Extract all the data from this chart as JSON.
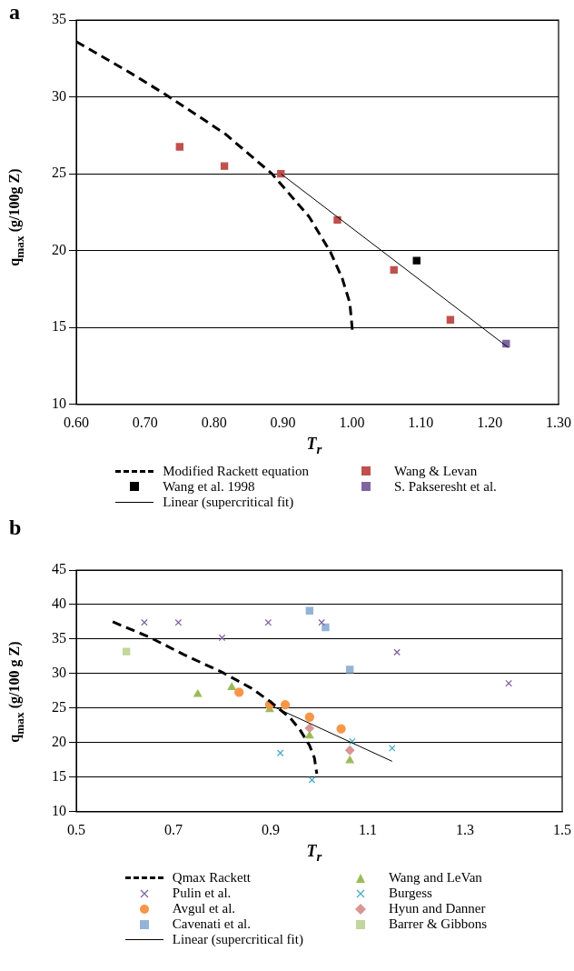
{
  "chart_data": [
    {
      "type": "scatter",
      "title": "a",
      "xlabel": "T$_{r}$",
      "ylabel": "q$_{max}$ (g/100g Z)",
      "xlim": [
        0.6,
        1.3
      ],
      "xticks": [
        {
          "value": 0.6,
          "label": "0.60"
        },
        {
          "value": 0.7,
          "label": "0.70"
        },
        {
          "value": 0.8,
          "label": "0.80"
        },
        {
          "value": 0.9,
          "label": "0.90"
        },
        {
          "value": 1.0,
          "label": "1.00"
        },
        {
          "value": 1.1,
          "label": "1.10"
        },
        {
          "value": 1.2,
          "label": "1.20"
        },
        {
          "value": 1.3,
          "label": "1.30"
        }
      ],
      "ylim": [
        10,
        35
      ],
      "yticks": [
        10,
        15,
        20,
        25,
        30,
        35
      ],
      "grid": "y",
      "legend": "bottom",
      "series": [
        {
          "name": "Modified Rackett equation",
          "type": "line",
          "line_style": "dashed",
          "marker": "none",
          "color": "#000000",
          "x": [
            0.6,
            0.677,
            0.728,
            0.816,
            0.884,
            0.938,
            0.969,
            0.986,
            0.997,
            1.001
          ],
          "values": [
            33.6,
            31.6,
            30.2,
            27.6,
            25.0,
            22.2,
            19.9,
            18.2,
            16.6,
            14.7
          ]
        },
        {
          "name": "Wang et al. 1998",
          "type": "scatter",
          "marker": "square",
          "color": "#000000",
          "x": [
            1.094
          ],
          "values": [
            19.35
          ]
        },
        {
          "name": "Linear (supercritical fit)",
          "type": "line",
          "line_style": "solid",
          "marker": "none",
          "color": "#000000",
          "x": [
            0.897,
            1.227
          ],
          "values": [
            25.0,
            13.7
          ]
        },
        {
          "name": "Wang & Levan",
          "type": "scatter",
          "marker": "square",
          "color": "#c0504d",
          "x": [
            0.75,
            0.815,
            0.897,
            0.979,
            1.061,
            1.143
          ],
          "values": [
            26.75,
            25.5,
            25.0,
            22.0,
            18.75,
            15.5
          ]
        },
        {
          "name": "S. Pakseresht et al.",
          "type": "scatter",
          "marker": "square",
          "color": "#8064a2",
          "x": [
            1.224
          ],
          "values": [
            13.95
          ]
        }
      ]
    },
    {
      "type": "scatter",
      "title": "b",
      "xlabel": "T$_{r}$",
      "ylabel": "q$_{max}$ (g/100 g Z)",
      "xlim": [
        0.5,
        1.5
      ],
      "xticks": [
        0.5,
        0.7,
        0.9,
        1.1,
        1.3,
        1.5
      ],
      "ylim": [
        10,
        45
      ],
      "yticks": [
        10,
        15,
        20,
        25,
        30,
        35,
        40,
        45
      ],
      "grid": "y",
      "legend": "bottom",
      "series": [
        {
          "name": "Qmax Rackett",
          "type": "line",
          "line_style": "dashed",
          "marker": "none",
          "color": "#000000",
          "x": [
            0.575,
            0.65,
            0.72,
            0.8,
            0.86,
            0.9,
            0.94,
            0.96,
            0.98,
            0.99,
            0.995
          ],
          "values": [
            37.5,
            35.3,
            32.8,
            30.2,
            27.9,
            25.9,
            23.6,
            21.9,
            19.6,
            17.8,
            15.5
          ]
        },
        {
          "name": "Pulin et al.",
          "type": "scatter",
          "marker": "cross",
          "color": "#8064a2",
          "x": [
            0.64,
            0.71,
            0.8,
            0.895,
            1.005,
            1.16,
            1.39
          ],
          "values": [
            37.4,
            37.4,
            35.2,
            37.4,
            37.4,
            33.1,
            28.6
          ]
        },
        {
          "name": "Avgul et al.",
          "type": "scatter",
          "marker": "circle",
          "color": "#f79646",
          "x": [
            0.835,
            0.898,
            0.93,
            0.98,
            1.045
          ],
          "values": [
            27.3,
            25.5,
            25.5,
            23.7,
            22.0
          ]
        },
        {
          "name": "Cavenati et al.",
          "type": "scatter",
          "marker": "square",
          "color": "#95b3d7",
          "x": [
            0.98,
            1.013,
            1.063
          ],
          "values": [
            39.1,
            36.7,
            30.6
          ]
        },
        {
          "name": "Linear (supercritical fit)",
          "type": "line",
          "line_style": "solid",
          "marker": "none",
          "color": "#000000",
          "x": [
            0.9,
            1.15
          ],
          "values": [
            25.4,
            17.3
          ]
        },
        {
          "name": "Wang and LeVan",
          "type": "scatter",
          "marker": "triangle",
          "color": "#9bbb59",
          "x": [
            0.75,
            0.82,
            0.898,
            0.98,
            1.063
          ],
          "values": [
            27.0,
            28.0,
            24.8,
            21.0,
            17.4
          ]
        },
        {
          "name": "Burgess",
          "type": "scatter",
          "marker": "cross",
          "color": "#4bacc6",
          "x": [
            0.92,
            0.985,
            1.068,
            1.15
          ],
          "values": [
            18.5,
            14.6,
            20.2,
            19.2
          ]
        },
        {
          "name": "Hyun and Danner",
          "type": "scatter",
          "marker": "diamond",
          "color": "#d99694",
          "x": [
            0.98,
            1.063
          ],
          "values": [
            22.1,
            18.9
          ]
        },
        {
          "name": "Barrer & Gibbons",
          "type": "scatter",
          "marker": "square",
          "color": "#c3d69b",
          "x": [
            0.603
          ],
          "values": [
            33.2
          ]
        }
      ]
    }
  ]
}
